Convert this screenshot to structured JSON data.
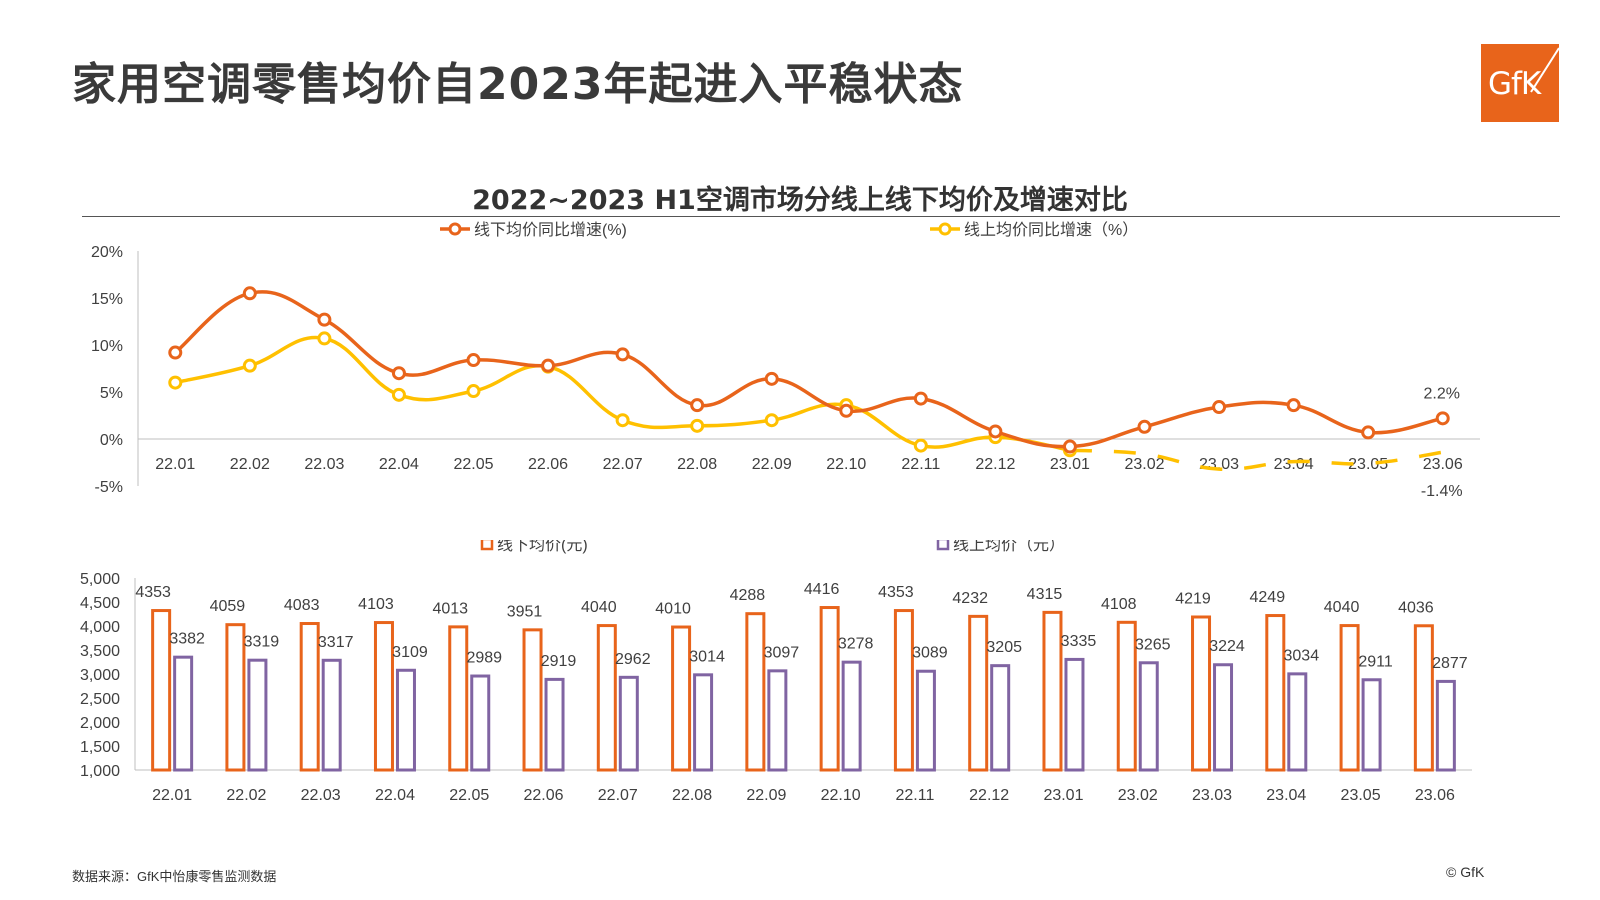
{
  "page": {
    "title": "家用空调零售均价自2023年起进入平稳状态",
    "logo_text": "GfK",
    "source": "数据来源：GfK中怡康零售监测数据",
    "copyright": "© GfK",
    "brand_color": "#e8641b"
  },
  "chart_data": [
    {
      "type": "line",
      "title": "2022~2023 H1空调市场分线上线下均价及增速对比",
      "categories": [
        "22.01",
        "22.02",
        "22.03",
        "22.04",
        "22.05",
        "22.06",
        "22.07",
        "22.08",
        "22.09",
        "22.10",
        "22.11",
        "22.12",
        "23.01",
        "23.02",
        "23.03",
        "23.04",
        "23.05",
        "23.06"
      ],
      "yticks": [
        "20%",
        "15%",
        "10%",
        "5%",
        "0%",
        "-5%"
      ],
      "ylim": [
        -5,
        20
      ],
      "legend_position": "top",
      "grid": false,
      "series": [
        {
          "name": "线下均价同比增速(%)",
          "color": "#e8641b",
          "values": [
            9.2,
            15.5,
            12.7,
            7.0,
            8.4,
            7.8,
            9.0,
            3.6,
            6.4,
            3.0,
            4.3,
            0.8,
            -0.8,
            1.3,
            3.4,
            3.6,
            0.7,
            2.2
          ]
        },
        {
          "name": "线上均价同比增速（%）",
          "color": "#ffc000",
          "values": [
            6.0,
            7.8,
            10.7,
            4.7,
            5.1,
            7.7,
            2.0,
            1.4,
            2.0,
            3.6,
            -0.7,
            0.2,
            -1.2,
            -1.6,
            -3.2,
            -2.4,
            -2.6,
            -1.4
          ]
        }
      ],
      "annotations": [
        {
          "category": "23.06",
          "series": "线下均价同比增速(%)",
          "text": "2.2%"
        },
        {
          "category": "23.06",
          "series": "线上均价同比增速（%）",
          "text": "-1.4%"
        }
      ]
    },
    {
      "type": "bar",
      "categories": [
        "22.01",
        "22.02",
        "22.03",
        "22.04",
        "22.05",
        "22.06",
        "22.07",
        "22.08",
        "22.09",
        "22.10",
        "22.11",
        "22.12",
        "23.01",
        "23.02",
        "23.03",
        "23.04",
        "23.05",
        "23.06"
      ],
      "yticks": [
        "5,000",
        "4,500",
        "4,000",
        "3,500",
        "3,000",
        "2,500",
        "2,000",
        "1,500",
        "1,000"
      ],
      "ylim": [
        1000,
        5000
      ],
      "legend_position": "top",
      "grid": false,
      "series": [
        {
          "name": "线下均价(元)",
          "color": "#e8641b",
          "values": [
            4353,
            4059,
            4083,
            4103,
            4013,
            3951,
            4040,
            4010,
            4288,
            4416,
            4353,
            4232,
            4315,
            4108,
            4219,
            4249,
            4040,
            4036
          ]
        },
        {
          "name": "线上均价（元）",
          "color": "#8064a2",
          "values": [
            3382,
            3319,
            3317,
            3109,
            2989,
            2919,
            2962,
            3014,
            3097,
            3278,
            3089,
            3205,
            3335,
            3265,
            3224,
            3034,
            2911,
            2877
          ]
        }
      ]
    }
  ]
}
